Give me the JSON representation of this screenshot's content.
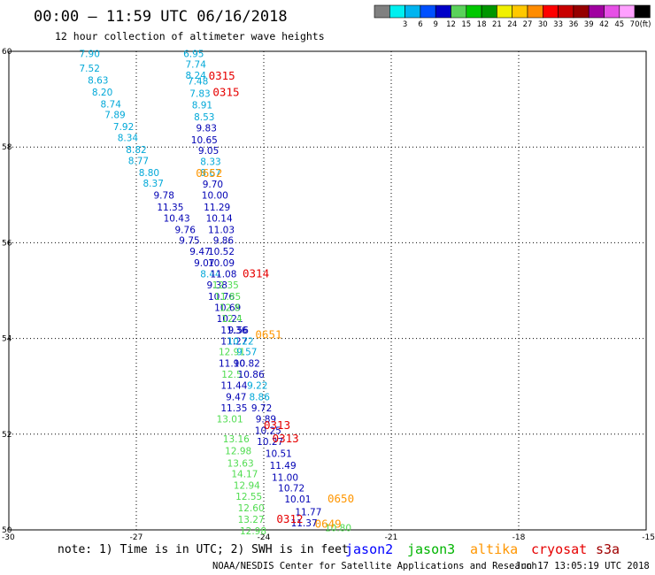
{
  "header": {
    "title": "00:00 – 11:59 UTC 06/16/2018",
    "subtitle": "12 hour collection of altimeter wave heights"
  },
  "legend": {
    "unit": "(ft)",
    "swatches": [
      {
        "color": "#808080",
        "label": ""
      },
      {
        "color": "#00f0f0",
        "label": "3"
      },
      {
        "color": "#00b4f0",
        "label": "6"
      },
      {
        "color": "#0050ff",
        "label": "9"
      },
      {
        "color": "#0000c8",
        "label": "12"
      },
      {
        "color": "#5ad25a",
        "label": "15"
      },
      {
        "color": "#00c800",
        "label": "18"
      },
      {
        "color": "#009600",
        "label": "21"
      },
      {
        "color": "#f0f000",
        "label": "24"
      },
      {
        "color": "#ffc800",
        "label": "27"
      },
      {
        "color": "#ff8c00",
        "label": "30"
      },
      {
        "color": "#ff0000",
        "label": "33"
      },
      {
        "color": "#c80000",
        "label": "36"
      },
      {
        "color": "#960000",
        "label": "39"
      },
      {
        "color": "#a000a0",
        "label": "42"
      },
      {
        "color": "#e650e6",
        "label": "45"
      },
      {
        "color": "#ffa0ff",
        "label": "70"
      },
      {
        "color": "#000000",
        "label": ""
      }
    ]
  },
  "map": {
    "lat_range": [
      50,
      60
    ],
    "lon_range": [
      -30,
      -15
    ],
    "lat_ticks": [
      "50",
      "52",
      "54",
      "56",
      "58",
      "60"
    ],
    "lon_ticks": [
      "-30",
      "-27",
      "-24",
      "-21",
      "-18",
      "-15"
    ],
    "grid": "dotted"
  },
  "colors": {
    "cyan": "#00a8d8",
    "navy": "#0000b4",
    "green": "#50dc50",
    "orange": "#ff9600",
    "red": "#e60000"
  },
  "observations": [
    {
      "lon": -28.1,
      "lat": 59.95,
      "v": "7.90",
      "c": "cyan"
    },
    {
      "lon": -28.1,
      "lat": 59.65,
      "v": "7.52",
      "c": "cyan"
    },
    {
      "lon": -27.9,
      "lat": 59.4,
      "v": "8.63",
      "c": "cyan"
    },
    {
      "lon": -27.8,
      "lat": 59.15,
      "v": "8.20",
      "c": "cyan"
    },
    {
      "lon": -27.6,
      "lat": 58.9,
      "v": "8.74",
      "c": "cyan"
    },
    {
      "lon": -27.5,
      "lat": 58.68,
      "v": "7.89",
      "c": "cyan"
    },
    {
      "lon": -27.3,
      "lat": 58.43,
      "v": "7.92",
      "c": "cyan"
    },
    {
      "lon": -27.2,
      "lat": 58.2,
      "v": "8.34",
      "c": "cyan"
    },
    {
      "lon": -27.0,
      "lat": 57.95,
      "v": "8.82",
      "c": "cyan"
    },
    {
      "lon": -26.95,
      "lat": 57.72,
      "v": "8.77",
      "c": "cyan"
    },
    {
      "lon": -26.7,
      "lat": 57.47,
      "v": "8.80",
      "c": "cyan"
    },
    {
      "lon": -26.6,
      "lat": 57.25,
      "v": "8.37",
      "c": "cyan"
    },
    {
      "lon": -26.35,
      "lat": 57.0,
      "v": "9.78",
      "c": "navy"
    },
    {
      "lon": -26.2,
      "lat": 56.75,
      "v": "11.35",
      "c": "navy"
    },
    {
      "lon": -26.05,
      "lat": 56.52,
      "v": "10.43",
      "c": "navy"
    },
    {
      "lon": -25.85,
      "lat": 56.28,
      "v": "9.76",
      "c": "navy"
    },
    {
      "lon": -25.75,
      "lat": 56.05,
      "v": "9.75",
      "c": "navy"
    },
    {
      "lon": -25.5,
      "lat": 55.82,
      "v": "9.47",
      "c": "navy"
    },
    {
      "lon": -25.4,
      "lat": 55.58,
      "v": "9.07",
      "c": "navy"
    },
    {
      "lon": -25.25,
      "lat": 55.35,
      "v": "8.44",
      "c": "cyan"
    },
    {
      "lon": -25.1,
      "lat": 55.12,
      "v": "9.38",
      "c": "navy"
    },
    {
      "lon": -25.0,
      "lat": 54.88,
      "v": "10.76",
      "c": "navy"
    },
    {
      "lon": -24.85,
      "lat": 54.65,
      "v": "10.69",
      "c": "navy"
    },
    {
      "lon": -24.8,
      "lat": 54.42,
      "v": "10.21",
      "c": "navy"
    },
    {
      "lon": -24.7,
      "lat": 54.18,
      "v": "11.36",
      "c": "navy"
    },
    {
      "lon": -24.7,
      "lat": 53.95,
      "v": "11.27",
      "c": "navy"
    },
    {
      "lon": -24.75,
      "lat": 53.72,
      "v": "12.91",
      "c": "green"
    },
    {
      "lon": -24.75,
      "lat": 53.48,
      "v": "11.90",
      "c": "navy"
    },
    {
      "lon": -24.75,
      "lat": 53.25,
      "v": "12.5",
      "c": "green"
    },
    {
      "lon": -24.7,
      "lat": 53.02,
      "v": "11.44",
      "c": "navy"
    },
    {
      "lon": -24.65,
      "lat": 52.78,
      "v": "9.47",
      "c": "navy"
    },
    {
      "lon": -24.7,
      "lat": 52.55,
      "v": "11.35",
      "c": "navy"
    },
    {
      "lon": -24.8,
      "lat": 52.32,
      "v": "13.01",
      "c": "green"
    },
    {
      "lon": -24.65,
      "lat": 51.9,
      "v": "13.16",
      "c": "green"
    },
    {
      "lon": -24.6,
      "lat": 51.65,
      "v": "12.98",
      "c": "green"
    },
    {
      "lon": -24.55,
      "lat": 51.4,
      "v": "13.63",
      "c": "green"
    },
    {
      "lon": -24.45,
      "lat": 51.17,
      "v": "14.17",
      "c": "green"
    },
    {
      "lon": -24.4,
      "lat": 50.93,
      "v": "12.94",
      "c": "green"
    },
    {
      "lon": -24.35,
      "lat": 50.7,
      "v": "12.55",
      "c": "green"
    },
    {
      "lon": -24.3,
      "lat": 50.46,
      "v": "12.60",
      "c": "green"
    },
    {
      "lon": -24.3,
      "lat": 50.22,
      "v": "13.27",
      "c": "green"
    },
    {
      "lon": -24.25,
      "lat": 49.98,
      "v": "12.98",
      "c": "green"
    },
    {
      "lon": -25.65,
      "lat": 59.95,
      "v": "6.95",
      "c": "cyan"
    },
    {
      "lon": -25.6,
      "lat": 59.73,
      "v": "7.74",
      "c": "cyan"
    },
    {
      "lon": -25.6,
      "lat": 59.5,
      "v": "8.24",
      "c": "cyan"
    },
    {
      "lon": -25.55,
      "lat": 59.38,
      "v": "7.48",
      "c": "cyan"
    },
    {
      "lon": -25.5,
      "lat": 59.12,
      "v": "7.83",
      "c": "cyan"
    },
    {
      "lon": -25.45,
      "lat": 58.88,
      "v": "8.91",
      "c": "cyan"
    },
    {
      "lon": -25.4,
      "lat": 58.63,
      "v": "8.53",
      "c": "cyan"
    },
    {
      "lon": -25.35,
      "lat": 58.4,
      "v": "9.83",
      "c": "navy"
    },
    {
      "lon": -25.4,
      "lat": 58.15,
      "v": "10.65",
      "c": "navy"
    },
    {
      "lon": -25.3,
      "lat": 57.93,
      "v": "9.05",
      "c": "navy"
    },
    {
      "lon": -25.25,
      "lat": 57.7,
      "v": "8.33",
      "c": "cyan"
    },
    {
      "lon": -25.25,
      "lat": 57.47,
      "v": "8.67",
      "c": "cyan"
    },
    {
      "lon": -25.2,
      "lat": 57.23,
      "v": "9.70",
      "c": "navy"
    },
    {
      "lon": -25.15,
      "lat": 57.0,
      "v": "10.00",
      "c": "navy"
    },
    {
      "lon": -25.1,
      "lat": 56.75,
      "v": "11.29",
      "c": "navy"
    },
    {
      "lon": -25.05,
      "lat": 56.52,
      "v": "10.14",
      "c": "navy"
    },
    {
      "lon": -25.0,
      "lat": 56.28,
      "v": "11.03",
      "c": "navy"
    },
    {
      "lon": -24.95,
      "lat": 56.05,
      "v": "9.86",
      "c": "navy"
    },
    {
      "lon": -25.0,
      "lat": 55.82,
      "v": "10.52",
      "c": "navy"
    },
    {
      "lon": -25.0,
      "lat": 55.58,
      "v": "10.09",
      "c": "navy"
    },
    {
      "lon": -24.95,
      "lat": 55.35,
      "v": "11.08",
      "c": "navy"
    },
    {
      "lon": -24.9,
      "lat": 55.12,
      "v": "12.35",
      "c": "green"
    },
    {
      "lon": -24.85,
      "lat": 54.88,
      "v": "11.85",
      "c": "green"
    },
    {
      "lon": -24.8,
      "lat": 54.65,
      "v": "12.8",
      "c": "green"
    },
    {
      "lon": -24.75,
      "lat": 54.42,
      "v": "12.4",
      "c": "green"
    },
    {
      "lon": -24.6,
      "lat": 54.18,
      "v": "9.56",
      "c": "navy"
    },
    {
      "lon": -24.55,
      "lat": 53.95,
      "v": "10.22",
      "c": "cyan"
    },
    {
      "lon": -24.4,
      "lat": 53.72,
      "v": "9.57",
      "c": "cyan"
    },
    {
      "lon": -24.4,
      "lat": 53.48,
      "v": "10.82",
      "c": "navy"
    },
    {
      "lon": -24.3,
      "lat": 53.25,
      "v": "10.86",
      "c": "navy"
    },
    {
      "lon": -24.15,
      "lat": 53.02,
      "v": "9.22",
      "c": "cyan"
    },
    {
      "lon": -24.1,
      "lat": 52.78,
      "v": "8.86",
      "c": "cyan"
    },
    {
      "lon": -24.05,
      "lat": 52.55,
      "v": "9.72",
      "c": "navy"
    },
    {
      "lon": -23.95,
      "lat": 52.32,
      "v": "9.89",
      "c": "navy"
    },
    {
      "lon": -23.9,
      "lat": 52.08,
      "v": "10.25",
      "c": "navy"
    },
    {
      "lon": -23.85,
      "lat": 51.85,
      "v": "10.27",
      "c": "navy"
    },
    {
      "lon": -23.65,
      "lat": 51.6,
      "v": "10.51",
      "c": "navy"
    },
    {
      "lon": -23.55,
      "lat": 51.35,
      "v": "11.49",
      "c": "navy"
    },
    {
      "lon": -23.5,
      "lat": 51.1,
      "v": "11.00",
      "c": "navy"
    },
    {
      "lon": -23.35,
      "lat": 50.88,
      "v": "10.72",
      "c": "navy"
    },
    {
      "lon": -23.2,
      "lat": 50.65,
      "v": "10.01",
      "c": "navy"
    },
    {
      "lon": -22.95,
      "lat": 50.38,
      "v": "11.77",
      "c": "navy"
    },
    {
      "lon": -23.05,
      "lat": 50.15,
      "v": "11.37",
      "c": "navy"
    },
    {
      "lon": -22.25,
      "lat": 50.05,
      "v": "10.80",
      "c": "green"
    }
  ],
  "pass_labels": [
    {
      "lon": -25.3,
      "lat": 59.48,
      "v": "0315",
      "c": "red"
    },
    {
      "lon": -25.2,
      "lat": 59.14,
      "v": "0315",
      "c": "red"
    },
    {
      "lon": -25.6,
      "lat": 57.45,
      "v": "0652",
      "c": "orange"
    },
    {
      "lon": -24.5,
      "lat": 55.35,
      "v": "0314",
      "c": "red"
    },
    {
      "lon": -24.2,
      "lat": 54.08,
      "v": "0651",
      "c": "orange"
    },
    {
      "lon": -24.0,
      "lat": 52.18,
      "v": "0313",
      "c": "red"
    },
    {
      "lon": -23.8,
      "lat": 51.9,
      "v": "0313",
      "c": "red"
    },
    {
      "lon": -22.5,
      "lat": 50.65,
      "v": "0650",
      "c": "orange"
    },
    {
      "lon": -23.7,
      "lat": 50.22,
      "v": "0312",
      "c": "red"
    },
    {
      "lon": -22.8,
      "lat": 50.12,
      "v": "0649",
      "c": "orange"
    }
  ],
  "footer": {
    "note": "note: 1) Time is in UTC; 2) SWH is in feet",
    "satellites": [
      {
        "name": "jason2",
        "color": "#0000ff"
      },
      {
        "name": "jason3",
        "color": "#00b400"
      },
      {
        "name": "altika",
        "color": "#ff9600"
      },
      {
        "name": "cryosat",
        "color": "#e60000"
      },
      {
        "name": "s3a",
        "color": "#a00000"
      }
    ],
    "credit": "NOAA/NESDIS Center for Satellite Applications and Research",
    "timestamp": "Jun 17 13:05:19 UTC 2018"
  }
}
